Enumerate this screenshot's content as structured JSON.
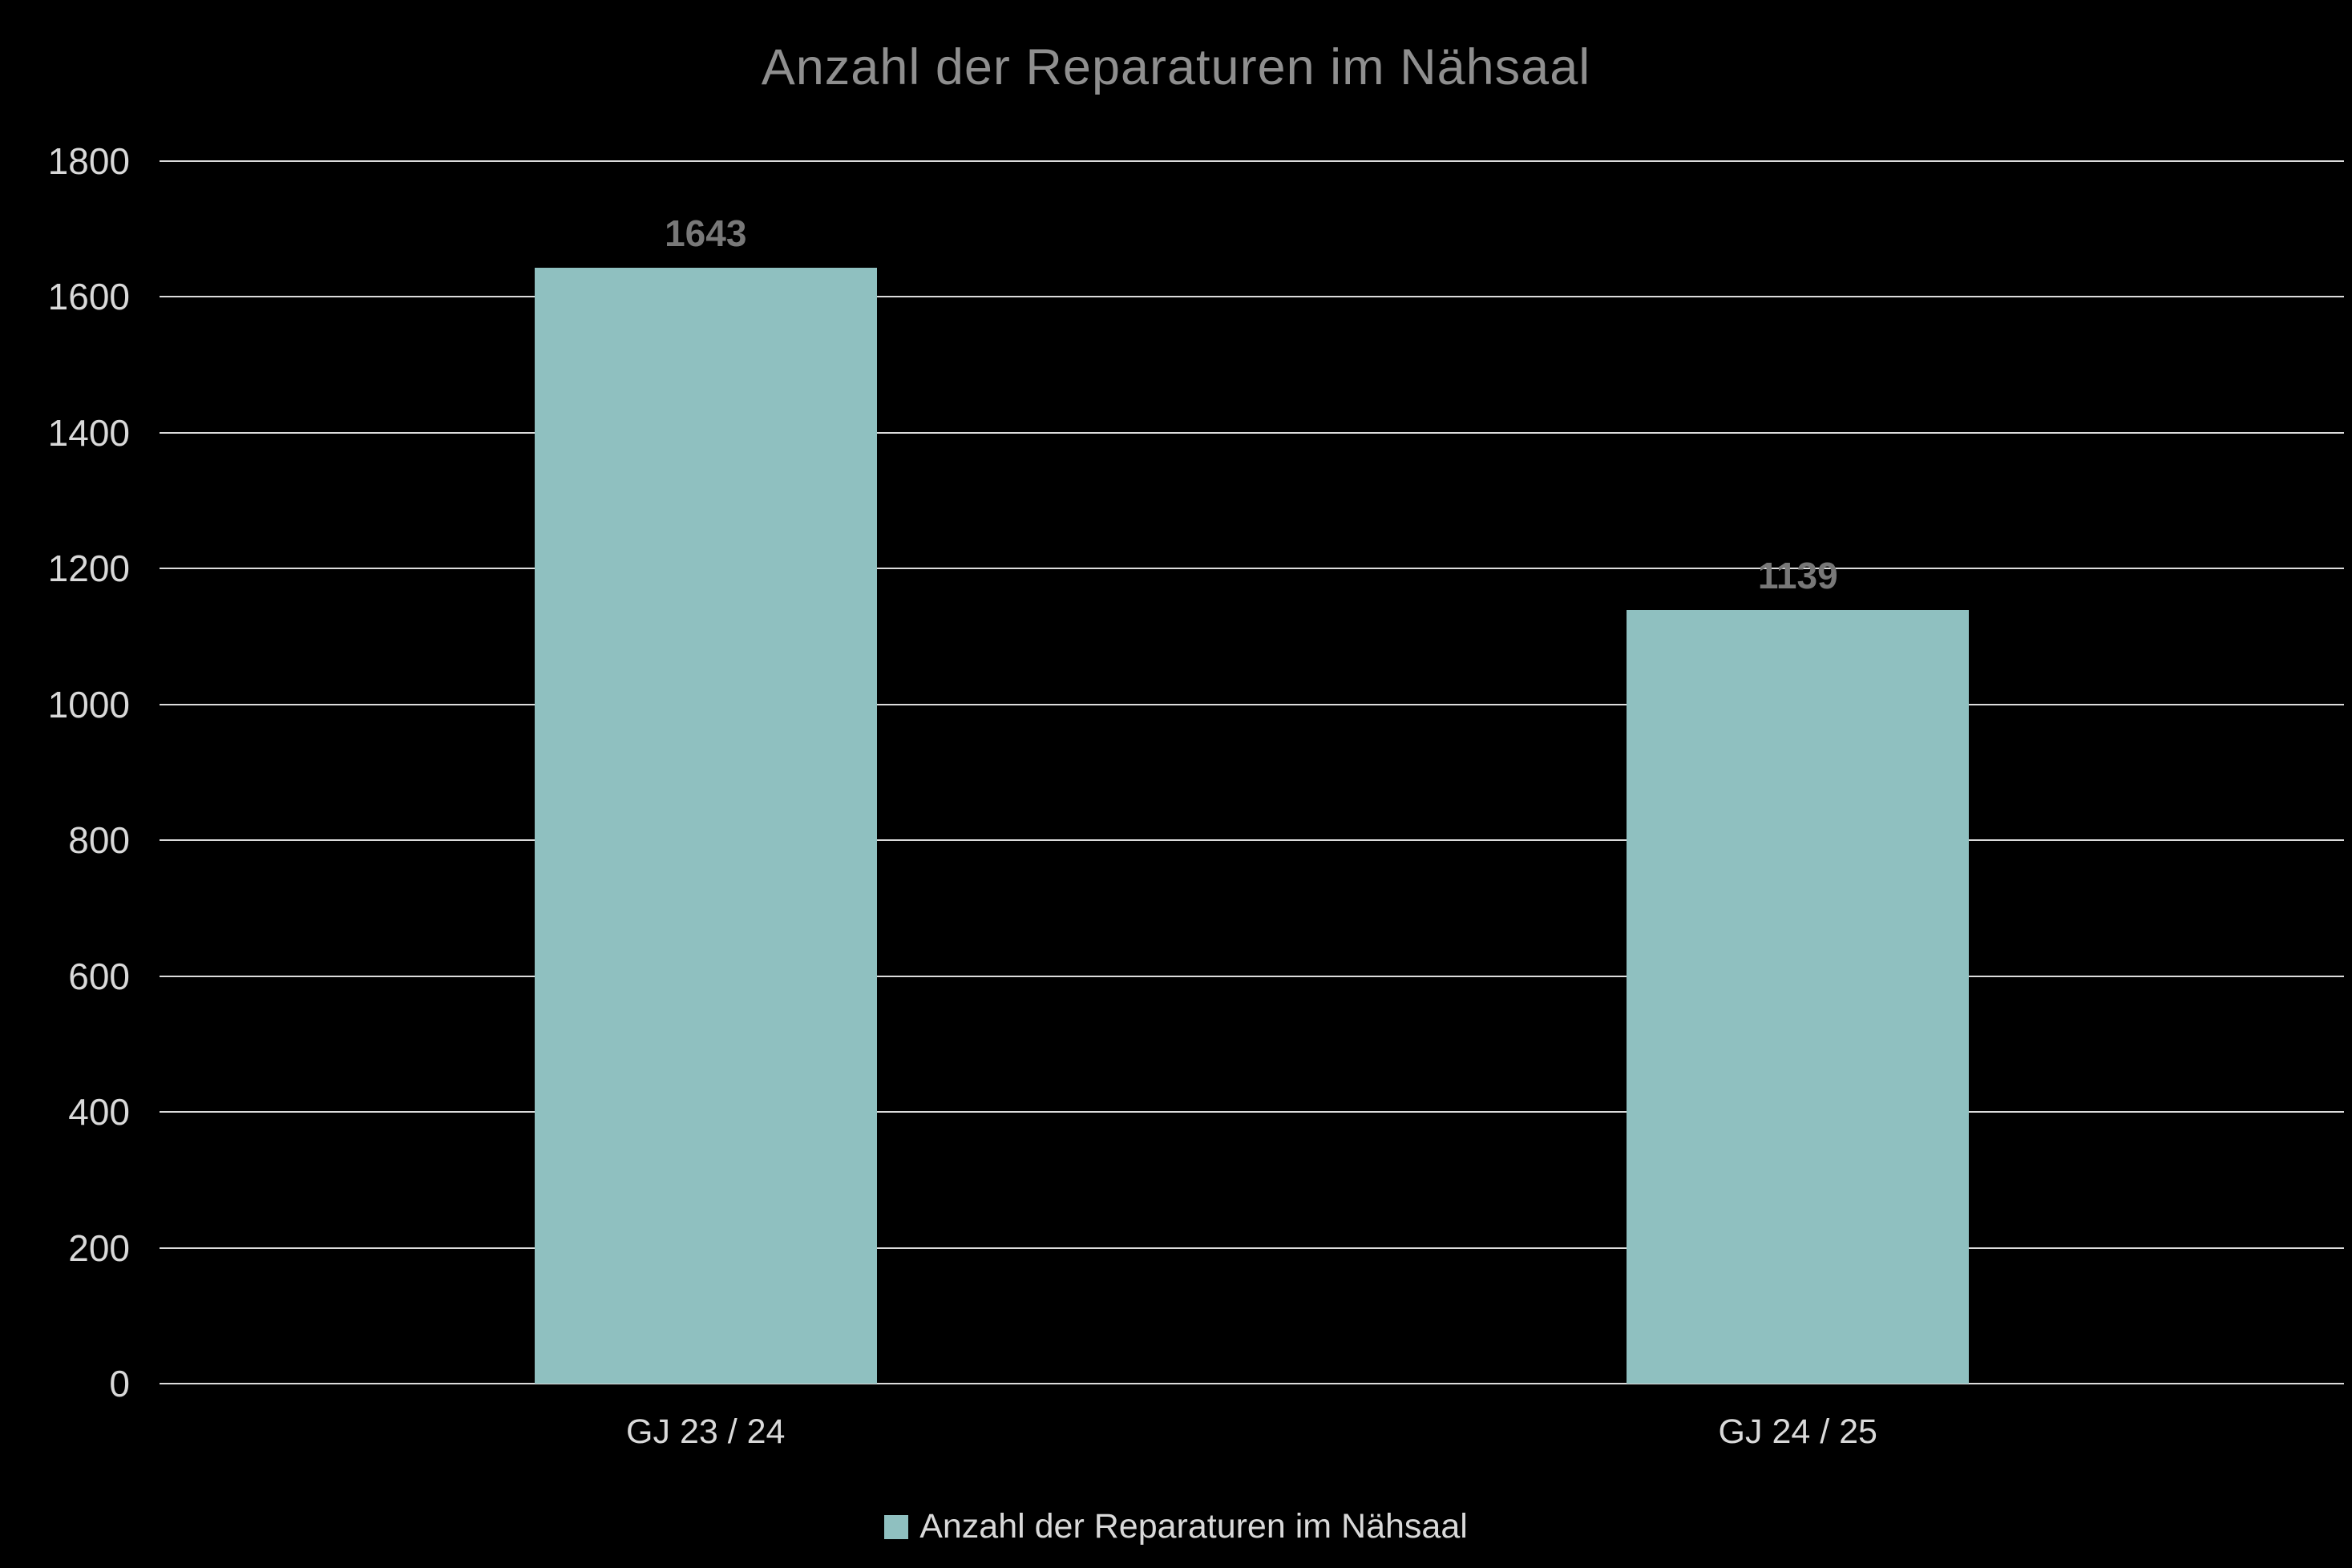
{
  "chart_data": {
    "type": "bar",
    "title": "Anzahl der Reparaturen im Nähsaal",
    "categories": [
      "GJ 23 / 24",
      "GJ 24 / 25"
    ],
    "values": [
      1643,
      1139
    ],
    "series_name": "Anzahl der Reparaturen im Nähsaal",
    "xlabel": "",
    "ylabel": "",
    "ylim": [
      0,
      1800
    ],
    "yticks": [
      0,
      200,
      400,
      600,
      800,
      1000,
      1200,
      1400,
      1600,
      1800
    ],
    "grid": true,
    "legend_position": "bottom",
    "colors": {
      "background": "#000000",
      "bar_fill": "#8FC0C0",
      "gridline": "#DCDCDC",
      "title_text": "#8F8F8F",
      "tick_text": "#D9D9D9",
      "value_label_text": "#787878"
    }
  }
}
